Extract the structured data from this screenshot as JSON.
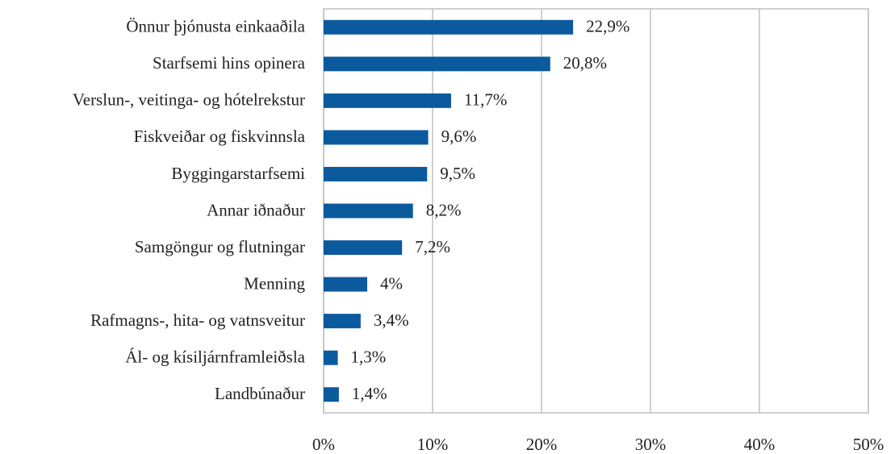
{
  "chart_data": {
    "type": "barh",
    "categories": [
      "Önnur þjónusta einkaaðila",
      "Starfsemi hins opinera",
      "Verslun-, veitinga- og hótelrekstur",
      "Fiskveiðar og fiskvinnsla",
      "Byggingarstarfsemi",
      "Annar iðnaður",
      "Samgöngur og flutningar",
      "Menning",
      "Rafmagns-, hita- og vatnsveitur",
      "Ál- og kísiljárnframleiðsla",
      "Landbúnaður"
    ],
    "values": [
      22.9,
      20.8,
      11.7,
      9.6,
      9.5,
      8.2,
      7.2,
      4,
      3.4,
      1.3,
      1.4
    ],
    "value_labels": [
      "22,9%",
      "20,8%",
      "11,7%",
      "9,6%",
      "9,5%",
      "8,2%",
      "7,2%",
      "4%",
      "3,4%",
      "1,3%",
      "1,4%"
    ],
    "color": "#0b5a9e",
    "xlim": [
      0,
      50
    ],
    "xticks": [
      {
        "value": 0,
        "label": "0%"
      },
      {
        "value": 10,
        "label": "10%"
      },
      {
        "value": 20,
        "label": "20%"
      },
      {
        "value": 30,
        "label": "30%"
      },
      {
        "value": 40,
        "label": "40%"
      },
      {
        "value": 50,
        "label": "50%"
      }
    ],
    "grid": true
  }
}
